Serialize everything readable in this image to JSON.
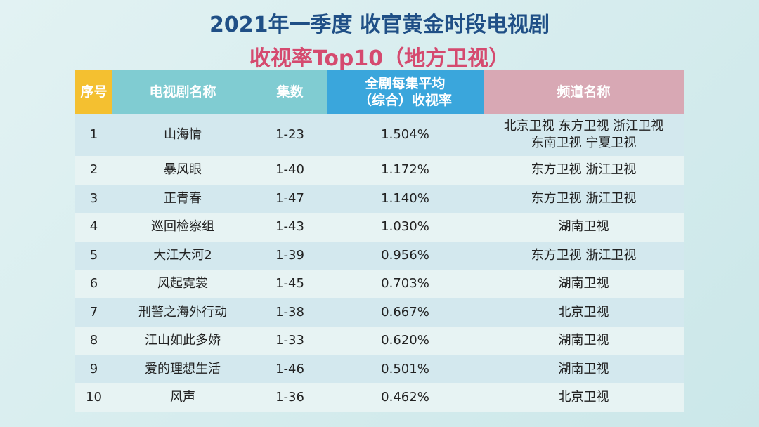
{
  "header": {
    "title_line1": "2021年一季度 收官黄金时段电视剧",
    "title_line2": "收视率Top10（地方卫视）"
  },
  "table": {
    "columns": [
      [
        "序号"
      ],
      [
        "电视剧名称"
      ],
      [
        "集数"
      ],
      [
        "全剧每集平均",
        "（综合）收视率"
      ],
      [
        "频道名称"
      ]
    ],
    "rows": [
      [
        [
          "1"
        ],
        [
          "山海情"
        ],
        [
          "1-23"
        ],
        [
          "1.504%"
        ],
        [
          "北京卫视 东方卫视 浙江卫视",
          "东南卫视 宁夏卫视"
        ]
      ],
      [
        [
          "2"
        ],
        [
          "暴风眼"
        ],
        [
          "1-40"
        ],
        [
          "1.172%"
        ],
        [
          "东方卫视 浙江卫视"
        ]
      ],
      [
        [
          "3"
        ],
        [
          "正青春"
        ],
        [
          "1-47"
        ],
        [
          "1.140%"
        ],
        [
          "东方卫视 浙江卫视"
        ]
      ],
      [
        [
          "4"
        ],
        [
          "巡回检察组"
        ],
        [
          "1-43"
        ],
        [
          "1.030%"
        ],
        [
          "湖南卫视"
        ]
      ],
      [
        [
          "5"
        ],
        [
          "大江大河2"
        ],
        [
          "1-39"
        ],
        [
          "0.956%"
        ],
        [
          "东方卫视 浙江卫视"
        ]
      ],
      [
        [
          "6"
        ],
        [
          "风起霓裳"
        ],
        [
          "1-45"
        ],
        [
          "0.703%"
        ],
        [
          "湖南卫视"
        ]
      ],
      [
        [
          "7"
        ],
        [
          "刑警之海外行动"
        ],
        [
          "1-38"
        ],
        [
          "0.667%"
        ],
        [
          "北京卫视"
        ]
      ],
      [
        [
          "8"
        ],
        [
          "江山如此多娇"
        ],
        [
          "1-33"
        ],
        [
          "0.620%"
        ],
        [
          "湖南卫视"
        ]
      ],
      [
        [
          "9"
        ],
        [
          "爱的理想生活"
        ],
        [
          "1-46"
        ],
        [
          "0.501%"
        ],
        [
          "湖南卫视"
        ]
      ],
      [
        [
          "10"
        ],
        [
          "风声"
        ],
        [
          "1-36"
        ],
        [
          "0.462%"
        ],
        [
          "北京卫视"
        ]
      ]
    ]
  }
}
